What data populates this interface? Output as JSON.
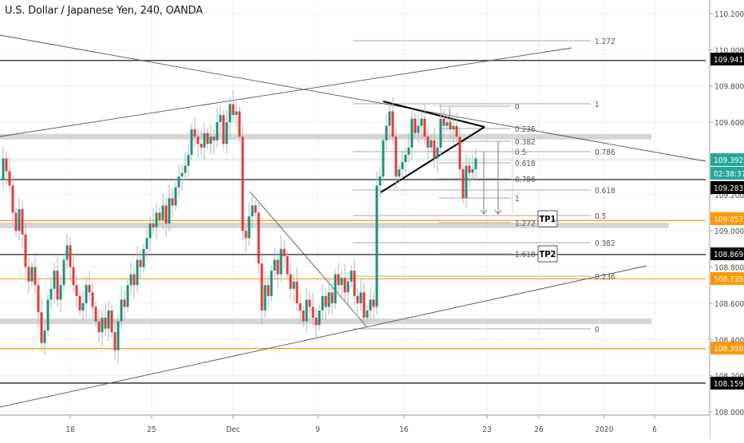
{
  "header": {
    "title": "U.S. Dollar / Japanese Yen, 240, OANDA"
  },
  "colors": {
    "up": "#26a69a",
    "up_body": "#1e8f7e",
    "down": "#ef5350",
    "down_body": "#e53935",
    "wick": "#b2b5be",
    "grid": "#eef2f6",
    "axis": "#9598a1",
    "orange": "#ff9800",
    "black_label": "#000000",
    "teal_label": "#26a69a",
    "zone": "#cfcfcf",
    "fib": "#a8a8a8"
  },
  "price_axis": {
    "ticks": [
      "110.200",
      "110.000",
      "109.800",
      "109.600",
      "109.200",
      "109.000",
      "108.800",
      "108.600",
      "108.400",
      "108.200",
      "108.000"
    ],
    "labels": [
      {
        "value": "109.941",
        "style": "black"
      },
      {
        "value": "109.392",
        "style": "teal"
      },
      {
        "value": "02:38:37",
        "style": "teal"
      },
      {
        "value": "109.283",
        "style": "black"
      },
      {
        "value": "109.057",
        "style": "orange"
      },
      {
        "value": "108.869",
        "style": "black"
      },
      {
        "value": "108.735",
        "style": "orange"
      },
      {
        "value": "108.350",
        "style": "orange"
      },
      {
        "value": "108.159",
        "style": "black"
      }
    ]
  },
  "time_axis": {
    "ticks": [
      "18",
      "25",
      "Dec",
      "9",
      "16",
      "23",
      "26",
      "2020",
      "6"
    ]
  },
  "annotations": {
    "tp1": "TP1",
    "tp2": "TP2",
    "fib_big": [
      "1.272",
      "1",
      "0.786",
      "0.618",
      "0.5",
      "0.382",
      "0.236",
      "0"
    ],
    "fib_small": [
      "0",
      "0.236",
      "0.382",
      "0.5",
      "0.618",
      "0.786",
      "1",
      "1.272",
      "1.618"
    ]
  },
  "chart_data": {
    "type": "candlestick",
    "title": "U.S. Dollar / Japanese Yen, 240, OANDA",
    "symbol": "USDJPY",
    "interval": "240",
    "source": "OANDA",
    "ylim": [
      107.96,
      110.25
    ],
    "y_ticks": [
      108.0,
      108.2,
      108.4,
      108.6,
      108.8,
      109.0,
      109.2,
      109.4,
      109.6,
      109.8,
      110.0,
      110.2
    ],
    "x_ticks": [
      "18",
      "25",
      "Dec",
      "9",
      "16",
      "23",
      "26",
      "2020",
      "6"
    ],
    "current_price": 109.392,
    "countdown": "02:38:37",
    "horizontal_levels": [
      {
        "price": 109.941,
        "color": "black"
      },
      {
        "price": 109.283,
        "color": "black"
      },
      {
        "price": 108.869,
        "color": "black"
      },
      {
        "price": 108.159,
        "color": "black"
      },
      {
        "price": 109.057,
        "color": "orange"
      },
      {
        "price": 108.735,
        "color": "orange"
      },
      {
        "price": 108.35,
        "color": "orange"
      }
    ],
    "zones": [
      {
        "price": 109.52,
        "label": "resistance zone"
      },
      {
        "price": 109.03,
        "label": "support zone"
      },
      {
        "price": 108.5,
        "label": "support zone"
      }
    ],
    "targets": [
      {
        "label": "TP1",
        "price": 109.03
      },
      {
        "label": "TP2",
        "price": 108.869
      }
    ],
    "fib_retracement_large": [
      {
        "level": "1.272",
        "price": 110.03
      },
      {
        "level": "1",
        "price": 109.7
      },
      {
        "level": "0.786",
        "price": 109.44
      },
      {
        "level": "0.618",
        "price": 109.24
      },
      {
        "level": "0.5",
        "price": 109.09
      },
      {
        "level": "0.382",
        "price": 108.95
      },
      {
        "level": "0.236",
        "price": 108.76
      },
      {
        "level": "0",
        "price": 108.47
      }
    ],
    "fib_retracement_small": [
      {
        "level": "0",
        "price": 109.68
      },
      {
        "level": "0.236",
        "price": 109.57
      },
      {
        "level": "0.382",
        "price": 109.5
      },
      {
        "level": "0.5",
        "price": 109.44
      },
      {
        "level": "0.618",
        "price": 109.38
      },
      {
        "level": "0.786",
        "price": 109.29
      },
      {
        "level": "1",
        "price": 109.19
      },
      {
        "level": "1.272",
        "price": 109.05
      },
      {
        "level": "1.618",
        "price": 108.87
      }
    ],
    "patterns": [
      "symmetrical triangle",
      "falling wedge/trendline",
      "ascending channel"
    ]
  }
}
